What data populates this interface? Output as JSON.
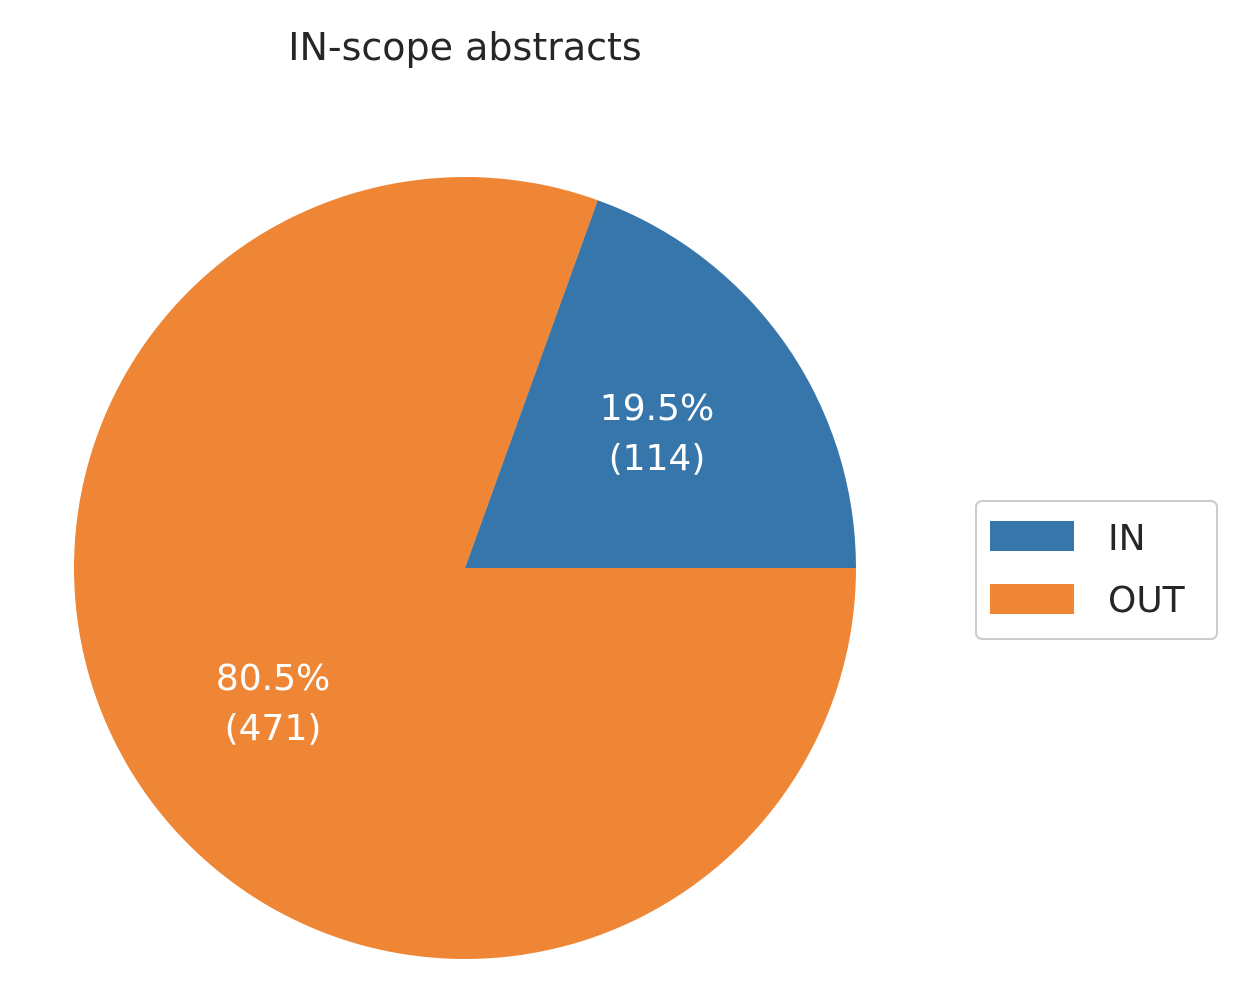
{
  "chart_data": {
    "type": "pie",
    "title": "IN-scope abstracts",
    "slices": [
      {
        "label": "IN",
        "value": 114,
        "percent_label": "19.5%",
        "count_label": "(114)",
        "color": "#3776ab"
      },
      {
        "label": "OUT",
        "value": 471,
        "percent_label": "80.5%",
        "count_label": "(471)",
        "color": "#ef8636"
      }
    ],
    "start_angle_deg": 0,
    "direction": "counterclockwise",
    "legend_position": "right"
  }
}
